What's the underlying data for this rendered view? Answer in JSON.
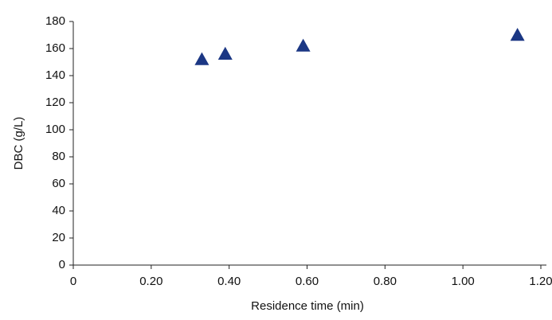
{
  "chart_data": {
    "type": "scatter",
    "x_label": "Residence time (min)",
    "y_label": "DBC (g/L)",
    "series": [
      {
        "color": "#1b3784",
        "x": [
          0.33,
          0.39,
          0.59,
          1.14
        ],
        "values": [
          152,
          156,
          162,
          170
        ]
      }
    ],
    "xlim": [
      0,
      1.2
    ],
    "ylim": [
      0,
      180
    ],
    "xticks": [
      0,
      {
        "value": 0.2,
        "label": "0.20"
      },
      {
        "value": 0.4,
        "label": "0.40"
      },
      {
        "value": 0.6,
        "label": "0.60"
      },
      {
        "value": 0.8,
        "label": "0.80"
      },
      {
        "value": 1.0,
        "label": "1.00"
      },
      {
        "value": 1.2,
        "label": "1.20"
      }
    ],
    "yticks": [
      0,
      20,
      40,
      60,
      80,
      100,
      120,
      140,
      160,
      180
    ],
    "grid": false
  }
}
